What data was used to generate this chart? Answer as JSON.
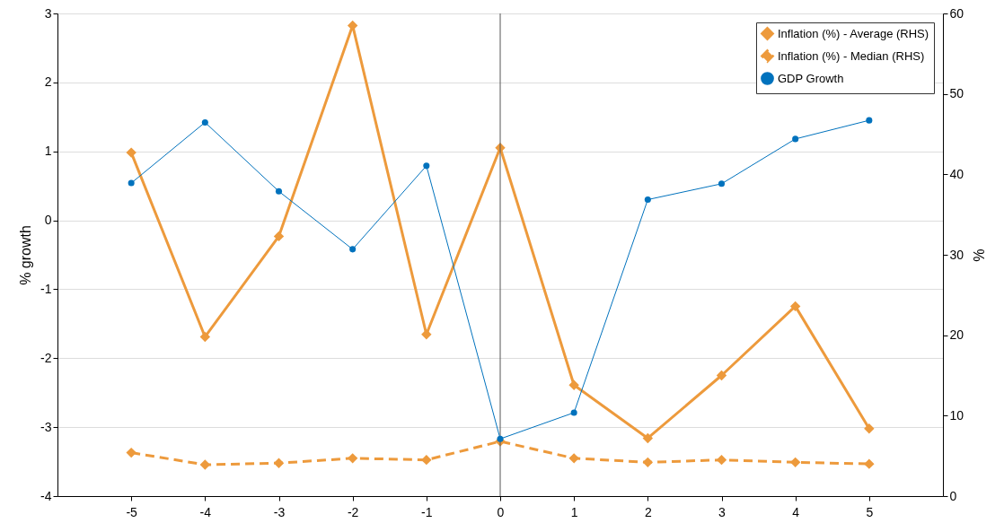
{
  "chart_data": {
    "type": "line",
    "ylabel": "% growth",
    "y2label": "%",
    "x": [
      -5,
      -4,
      -3,
      -2,
      -1,
      0,
      1,
      2,
      3,
      4,
      5
    ],
    "xlim": [
      -6,
      6
    ],
    "xticks": [
      -5,
      -4,
      -3,
      -2,
      -1,
      0,
      1,
      2,
      3,
      4,
      5
    ],
    "ylim": [
      -4,
      3
    ],
    "yticks": [
      -4,
      -3,
      -2,
      -1,
      0,
      1,
      2,
      3
    ],
    "y2lim": [
      0,
      60
    ],
    "y2ticks": [
      0,
      10,
      20,
      30,
      40,
      50,
      60
    ],
    "grid": "y",
    "legend": "top right",
    "ref_lines": [
      {
        "axis": "x",
        "value": 0,
        "color": "#555555"
      }
    ],
    "series": [
      {
        "name": "Inflation (%) - Average (RHS)",
        "color": "#ed9a3c",
        "axis": "y2",
        "marker": "diamond",
        "line_style": "solid",
        "values": [
          42.7,
          19.8,
          32.3,
          58.5,
          20.1,
          43.3,
          13.8,
          7.2,
          15.0,
          23.6,
          8.4
        ]
      },
      {
        "name": "Inflation (%) - Median (RHS)",
        "color": "#ed9a3c",
        "axis": "y2",
        "marker": "diamond",
        "line_style": "dashed",
        "values": [
          5.4,
          3.9,
          4.1,
          4.7,
          4.5,
          6.8,
          4.7,
          4.2,
          4.5,
          4.2,
          4.0
        ]
      },
      {
        "name": "GDP Growth",
        "color": "#0072bd",
        "marker": "circle",
        "line_style": "solid",
        "values": [
          0.54,
          1.42,
          0.42,
          -0.42,
          0.79,
          -3.17,
          -2.79,
          0.3,
          0.53,
          1.18,
          1.45
        ]
      }
    ]
  }
}
